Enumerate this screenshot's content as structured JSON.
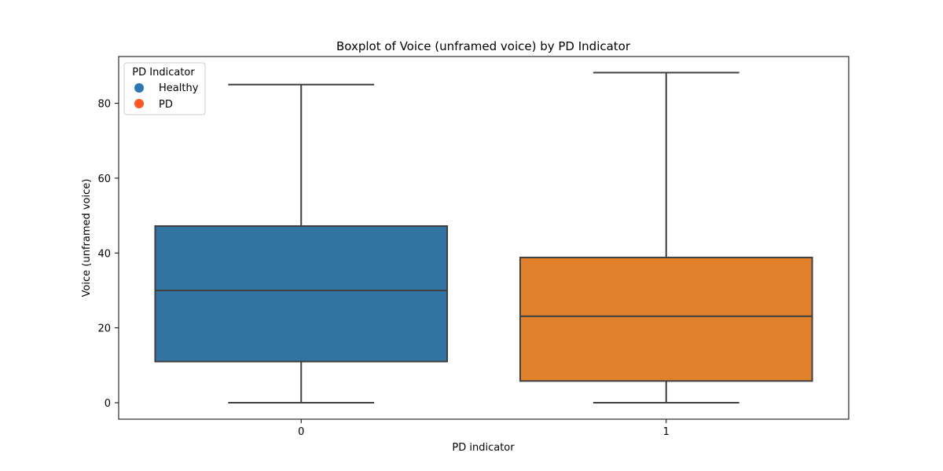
{
  "chart_data": {
    "type": "box",
    "title": "Boxplot of Voice (unframed voice) by PD Indicator",
    "xlabel": "PD indicator",
    "ylabel": "Voice (unframed voice)",
    "categories": [
      "0",
      "1"
    ],
    "ylim": [
      -4.4,
      92.5
    ],
    "yticks": [
      0,
      20,
      40,
      60,
      80
    ],
    "ytick_labels": [
      "0",
      "20",
      "40",
      "60",
      "80"
    ],
    "grid": false,
    "boxes": [
      {
        "category": "0",
        "min": 0,
        "q1": 11,
        "median": 30,
        "q3": 47.2,
        "max": 85,
        "color": "#3274a1"
      },
      {
        "category": "1",
        "min": 0,
        "q1": 5.8,
        "median": 23.1,
        "q3": 38.8,
        "max": 88.2,
        "color": "#e1812c"
      }
    ],
    "legend": {
      "title": "PD Indicator",
      "placement": "top-left",
      "entries": [
        {
          "label": "Healthy",
          "color": "#2f77b4"
        },
        {
          "label": "PD",
          "color": "#ff5722"
        }
      ]
    },
    "line_color": "#3f3f3f"
  }
}
